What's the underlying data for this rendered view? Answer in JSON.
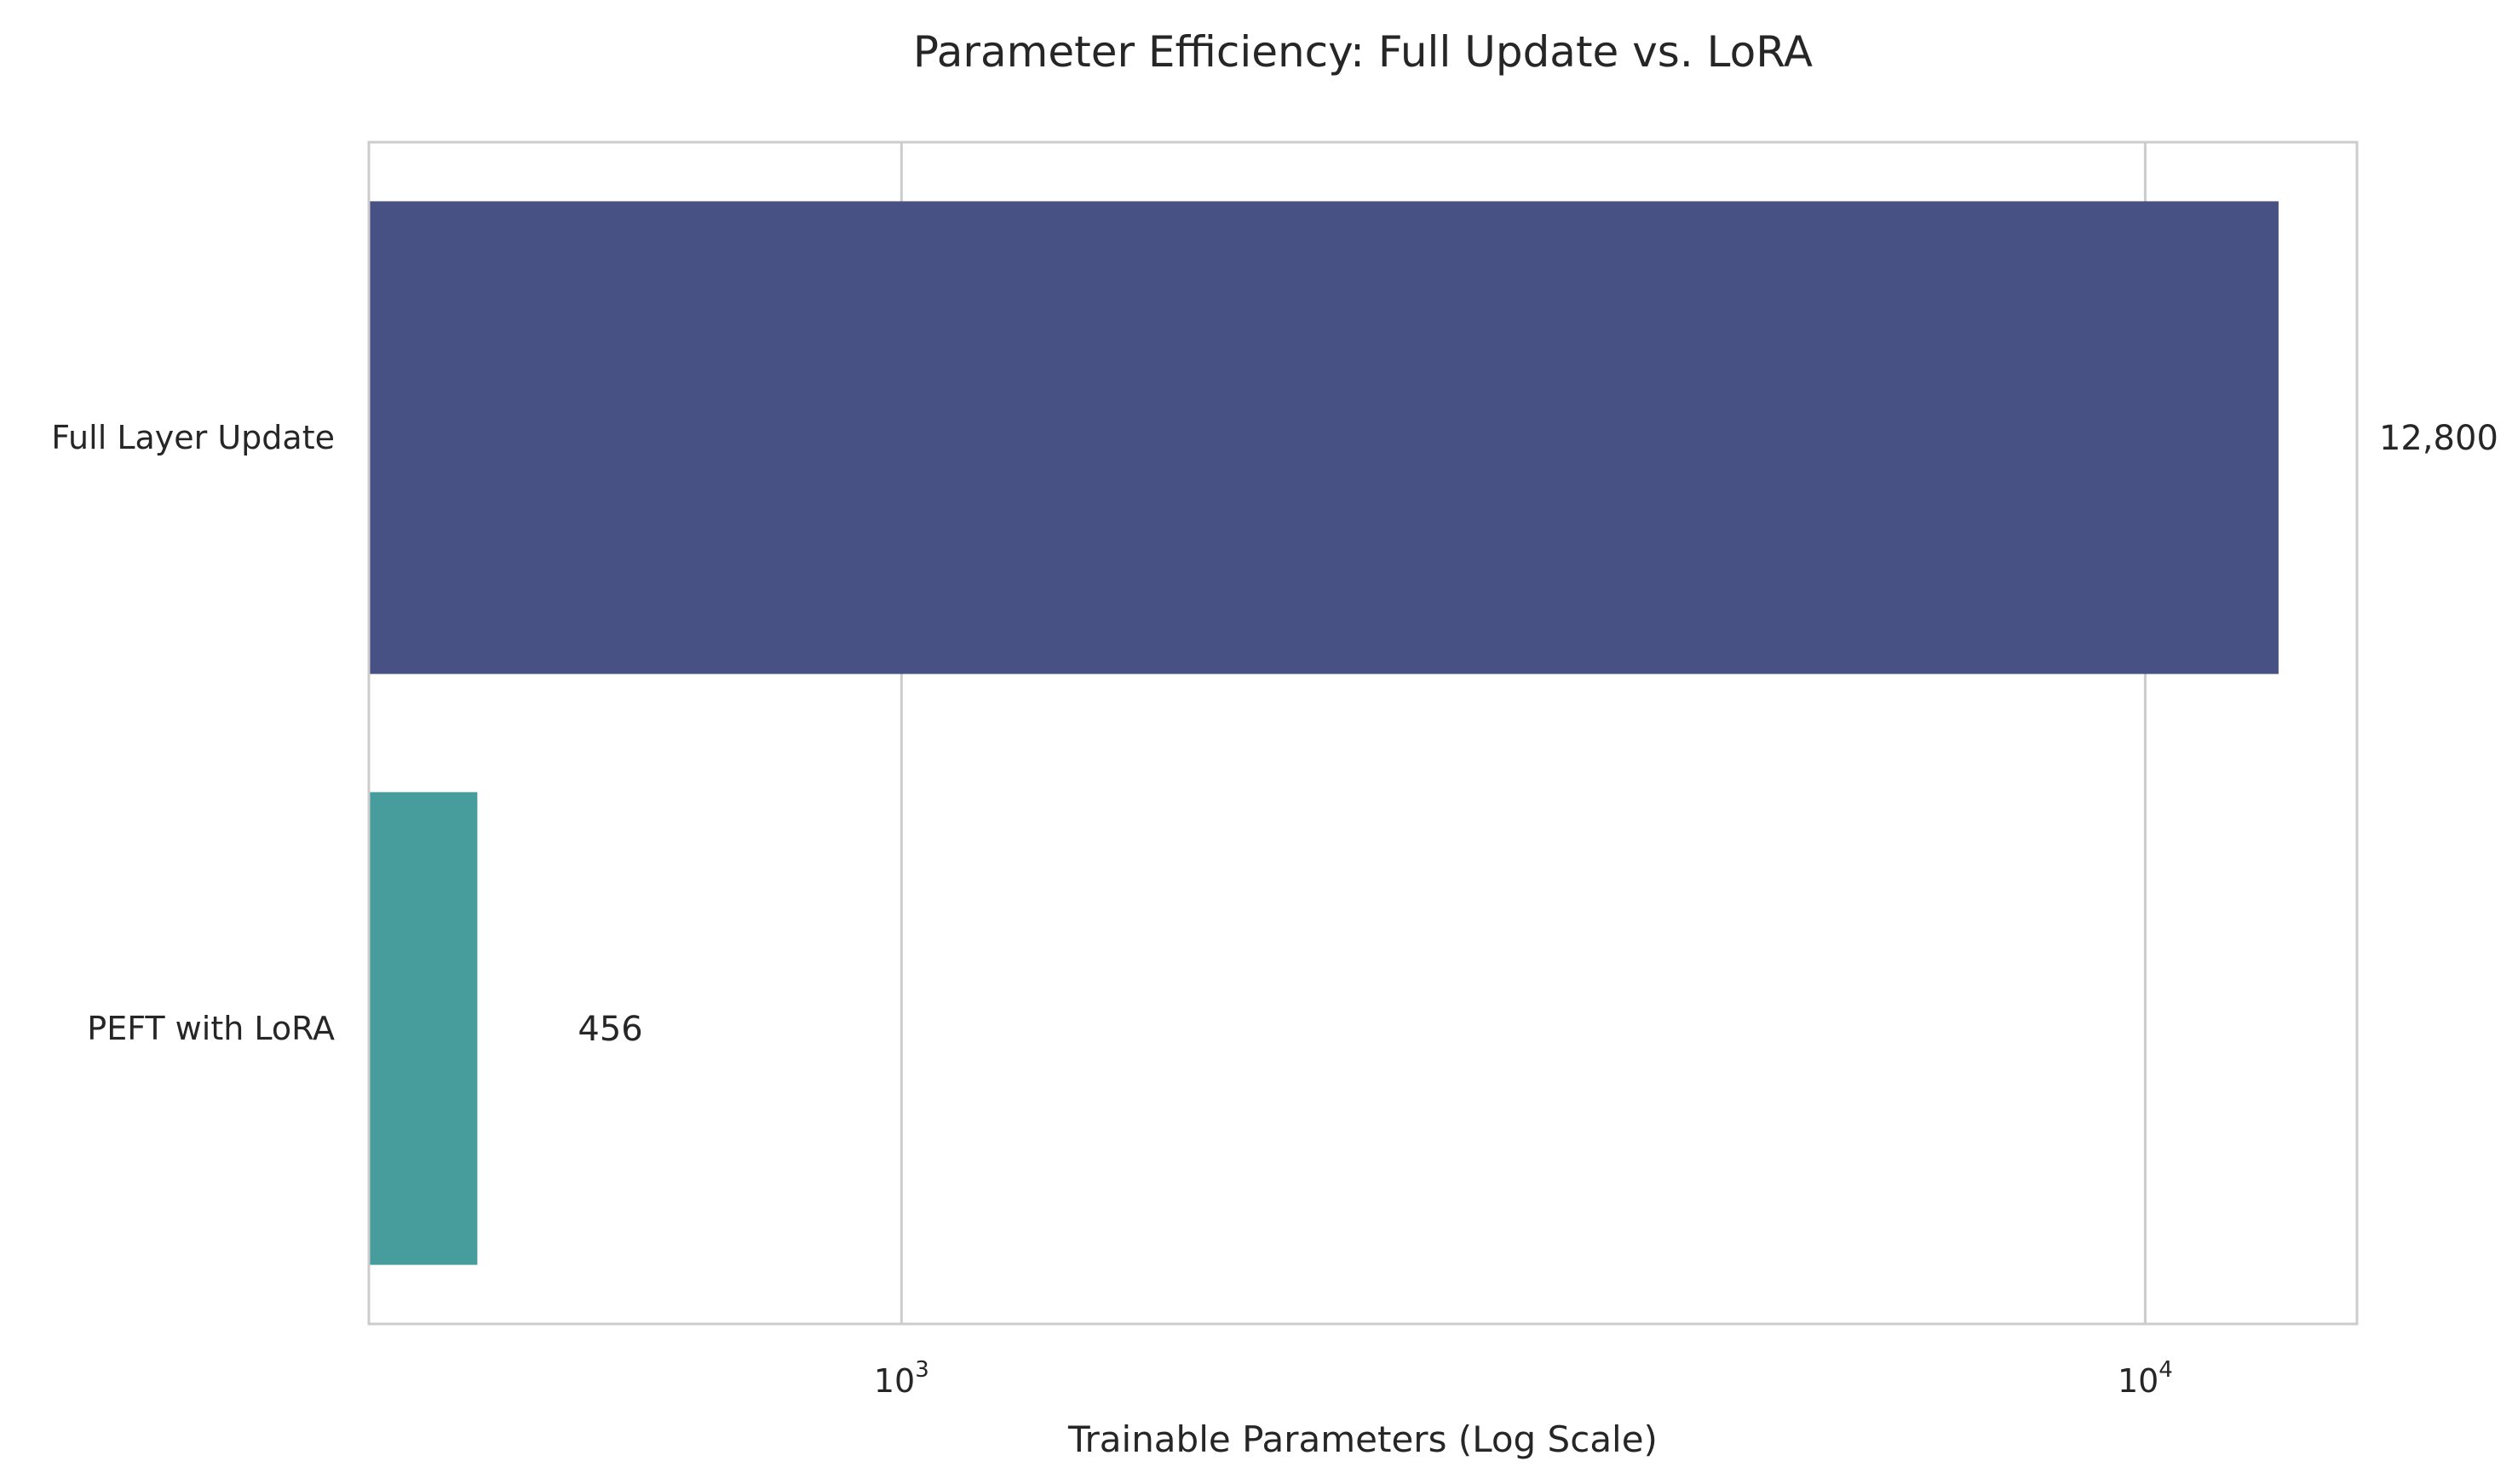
{
  "chart_data": {
    "type": "bar",
    "orientation": "horizontal",
    "title": "Parameter Efficiency: Full Update vs. LoRA",
    "xlabel": "Trainable Parameters (Log Scale)",
    "ylabel": "",
    "xscale": "log",
    "xlim": [
      373,
      14800
    ],
    "grid": true,
    "categories": [
      "Full Layer Update",
      "PEFT with LoRA"
    ],
    "values": [
      12800,
      456
    ],
    "data_labels": [
      "12,800",
      "456"
    ],
    "colors": [
      "#485183",
      "#479c9c"
    ],
    "x_ticks": [
      {
        "value": 1000,
        "base": "10",
        "exp": "3"
      },
      {
        "value": 10000,
        "base": "10",
        "exp": "4"
      }
    ]
  }
}
